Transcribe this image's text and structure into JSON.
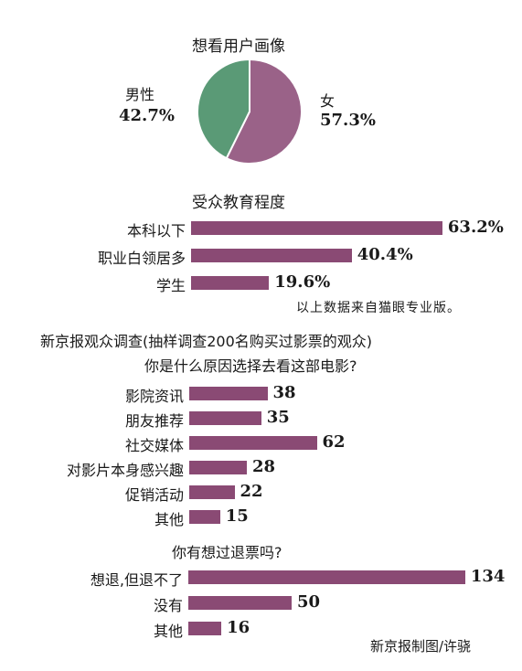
{
  "colors": {
    "bar": "#8a4a74",
    "pie_male": "#5a9a76",
    "pie_female": "#9a6288"
  },
  "chart_data": [
    {
      "type": "pie",
      "title": "想看用户画像",
      "slices": [
        {
          "label": "男性",
          "value": 42.7,
          "value_label": "42.7%"
        },
        {
          "label": "女",
          "value": 57.3,
          "value_label": "57.3%"
        }
      ]
    },
    {
      "type": "bar",
      "title": "受众教育程度",
      "categories": [
        "本科以下",
        "职业白领居多",
        "学生"
      ],
      "values": [
        63.2,
        40.4,
        19.6
      ],
      "value_labels": [
        "63.2%",
        "40.4%",
        "19.6%"
      ]
    },
    {
      "type": "bar",
      "title": "你是什么原因选择去看这部电影?",
      "categories": [
        "影院资讯",
        "朋友推荐",
        "社交媒体",
        "对影片本身感兴趣",
        "促销活动",
        "其他"
      ],
      "values": [
        38,
        35,
        62,
        28,
        22,
        15
      ],
      "value_labels": [
        "38",
        "35",
        "62",
        "28",
        "22",
        "15"
      ]
    },
    {
      "type": "bar",
      "title": "你有想过退票吗?",
      "categories": [
        "想退,但退不了",
        "没有",
        "其他"
      ],
      "values": [
        134,
        50,
        16
      ],
      "value_labels": [
        "134",
        "50",
        "16"
      ]
    }
  ],
  "notes": {
    "source_maoyan": "以上数据来自猫眼专业版。",
    "survey_header": "新京报观众调查(抽样调查200名购买过影票的观众)",
    "credit": "新京报制图/许骁"
  }
}
